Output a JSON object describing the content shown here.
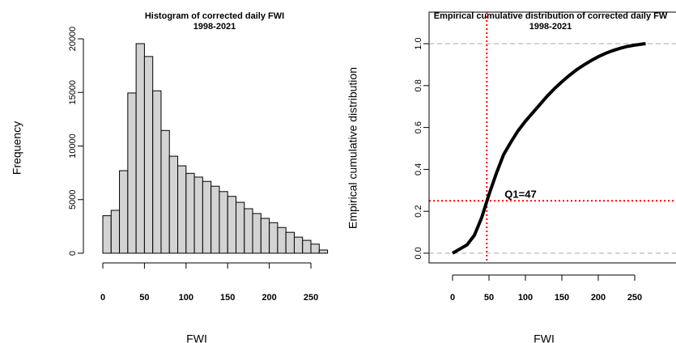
{
  "chart_data": [
    {
      "type": "histogram",
      "title": "Histogram of corrected daily FWI",
      "subtitle": "1998-2021",
      "xlabel": "FWI",
      "ylabel": "Frequency",
      "bins": [
        0,
        10,
        20,
        30,
        40,
        50,
        60,
        70,
        80,
        90,
        100,
        110,
        120,
        130,
        140,
        150,
        160,
        170,
        180,
        190,
        200,
        210,
        220,
        230,
        240,
        250,
        260,
        270
      ],
      "counts": [
        3500,
        4000,
        7700,
        14950,
        19550,
        18350,
        15150,
        11450,
        9050,
        8150,
        7450,
        7100,
        6700,
        6250,
        5750,
        5300,
        4750,
        4150,
        3700,
        3250,
        2850,
        2400,
        1950,
        1500,
        1200,
        850,
        300
      ],
      "color": "#d3d3d3",
      "xlim": [
        0,
        270
      ],
      "ylim": [
        0,
        20000
      ],
      "xticks": [
        0,
        50,
        100,
        150,
        200,
        250
      ],
      "yticks": [
        0,
        5000,
        10000,
        15000,
        20000
      ]
    },
    {
      "type": "ecdf",
      "title": "Empirical cumulative distribution of corrected daily FW",
      "subtitle": "1998-2021",
      "xlabel": "FWI",
      "ylabel": "Empirical cumulative distribution",
      "x": [
        0,
        10,
        20,
        30,
        40,
        50,
        60,
        70,
        80,
        90,
        100,
        110,
        120,
        130,
        140,
        150,
        160,
        170,
        180,
        190,
        200,
        210,
        220,
        230,
        240,
        250,
        260,
        265
      ],
      "values": [
        0,
        0.02,
        0.04,
        0.086,
        0.17,
        0.28,
        0.38,
        0.47,
        0.53,
        0.585,
        0.63,
        0.67,
        0.71,
        0.75,
        0.786,
        0.818,
        0.848,
        0.875,
        0.898,
        0.919,
        0.938,
        0.954,
        0.967,
        0.978,
        0.987,
        0.993,
        0.998,
        1.0
      ],
      "color": "#000000",
      "xlim": [
        0,
        250
      ],
      "ylim": [
        0,
        1
      ],
      "xticks": [
        0,
        50,
        100,
        150,
        200,
        250
      ],
      "yticks": [
        {
          "value": 0,
          "label": "0.0"
        },
        0.2,
        0.4,
        0.6,
        0.8,
        {
          "value": 1,
          "label": "1.0"
        }
      ],
      "dashed_hlines": [
        0,
        1
      ],
      "reference": {
        "x": 47,
        "y": 0.25,
        "color": "#ff0000",
        "label": "Q1=47"
      }
    }
  ]
}
